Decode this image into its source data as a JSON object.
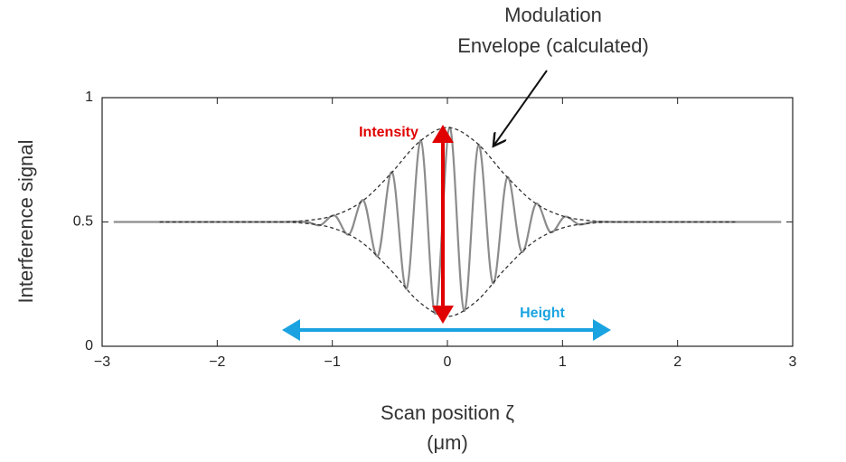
{
  "chart_data": {
    "type": "line",
    "annotation": [
      "Modulation",
      "Envelope (calculated)"
    ],
    "arrow_labels": {
      "intensity": "Intensity",
      "height": "Height"
    },
    "xlabel": [
      "Scan position ζ",
      "(μm)"
    ],
    "ylabel": "Interference signal",
    "xlim": [
      -3,
      3
    ],
    "ylim": [
      0,
      1
    ],
    "xticks": [
      {
        "value": -3,
        "label": "−3"
      },
      {
        "value": -2,
        "label": "−2"
      },
      {
        "value": -1,
        "label": "−1"
      },
      0,
      1,
      2,
      3
    ],
    "yticks": [
      0,
      0.5,
      1
    ],
    "series": [
      {
        "color": "#8c8c8c",
        "style": "solid",
        "x": [
          -2.9,
          -2.0,
          -1.5,
          -1.23,
          -1.105,
          -0.98,
          -0.855,
          -0.73,
          -0.605,
          -0.48,
          -0.355,
          -0.23,
          -0.105,
          0.02,
          0.145,
          0.27,
          0.395,
          0.52,
          0.645,
          0.77,
          0.895,
          1.02,
          1.145,
          1.27,
          1.5,
          2.0,
          2.9
        ],
        "values": [
          0.5,
          0.5,
          0.5,
          0.5,
          0.487,
          0.526,
          0.45,
          0.587,
          0.363,
          0.7,
          0.232,
          0.828,
          0.131,
          0.88,
          0.142,
          0.81,
          0.254,
          0.679,
          0.38,
          0.573,
          0.459,
          0.521,
          0.49,
          0.5,
          0.5,
          0.5,
          0.5
        ]
      },
      {
        "color": "#333333",
        "style": "dashed",
        "x": [
          -2.5,
          -2.0,
          -1.5,
          -1.25,
          -1.0,
          -0.75,
          -0.5,
          -0.25,
          0,
          0.25,
          0.5,
          0.75,
          1.0,
          1.25,
          1.5,
          2.0,
          2.5
        ],
        "values": [
          0.5,
          0.5,
          0.5,
          0.505,
          0.524,
          0.58,
          0.69,
          0.82,
          0.88,
          0.82,
          0.69,
          0.58,
          0.524,
          0.505,
          0.5,
          0.5,
          0.5
        ]
      },
      {
        "color": "#333333",
        "style": "dashed",
        "x": [
          -2.5,
          -2.0,
          -1.5,
          -1.25,
          -1.0,
          -0.75,
          -0.5,
          -0.25,
          0,
          0.25,
          0.5,
          0.75,
          1.0,
          1.25,
          1.5,
          2.0,
          2.5
        ],
        "values": [
          0.5,
          0.5,
          0.5,
          0.495,
          0.476,
          0.42,
          0.31,
          0.18,
          0.12,
          0.18,
          0.31,
          0.42,
          0.476,
          0.495,
          0.5,
          0.5,
          0.5
        ]
      }
    ]
  }
}
